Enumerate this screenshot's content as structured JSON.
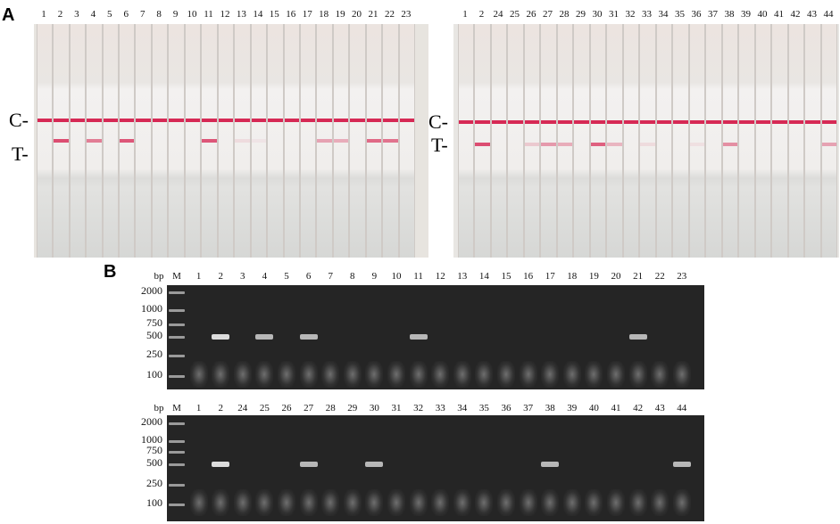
{
  "panel_labels": {
    "a": "A",
    "b": "B"
  },
  "strips": {
    "left": {
      "lanes": [
        "1",
        "2",
        "3",
        "4",
        "5",
        "6",
        "7",
        "8",
        "9",
        "10",
        "11",
        "12",
        "13",
        "14",
        "15",
        "16",
        "17",
        "18",
        "19",
        "20",
        "21",
        "22",
        "23"
      ],
      "positives": [
        "4",
        "6",
        "11",
        "18",
        "19",
        "21",
        "22"
      ],
      "t_band_strength": [
        0,
        0.85,
        0,
        0.6,
        0,
        0.8,
        0,
        0,
        0,
        0,
        0.8,
        0,
        0.1,
        0.05,
        0,
        0,
        0,
        0.4,
        0.35,
        0,
        0.7,
        0.65,
        0
      ]
    },
    "right": {
      "lanes": [
        "1",
        "2",
        "24",
        "25",
        "26",
        "27",
        "28",
        "29",
        "30",
        "31",
        "32",
        "33",
        "34",
        "35",
        "36",
        "37",
        "38",
        "39",
        "40",
        "41",
        "42",
        "43",
        "44"
      ],
      "positives": [
        "26",
        "27",
        "28",
        "30",
        "31",
        "38",
        "44"
      ],
      "t_band_strength": [
        0,
        0.85,
        0,
        0,
        0.2,
        0.45,
        0.35,
        0,
        0.75,
        0.3,
        0,
        0.1,
        0,
        0,
        0.08,
        0,
        0.5,
        0,
        0,
        0,
        0,
        0,
        0.4
      ]
    },
    "c_label": "C-",
    "t_label": "T-"
  },
  "gel": {
    "bp_label": "bp",
    "ladder": [
      "2000",
      "1000",
      "750",
      "500",
      "250",
      "100"
    ],
    "top": {
      "lanes": [
        "M",
        "1",
        "2",
        "3",
        "4",
        "5",
        "6",
        "7",
        "8",
        "9",
        "10",
        "11",
        "12",
        "13",
        "14",
        "15",
        "16",
        "17",
        "18",
        "19",
        "20",
        "21",
        "22",
        "23"
      ],
      "positives": [
        "4",
        "6",
        "11",
        "21"
      ]
    },
    "bottom": {
      "lanes": [
        "M",
        "1",
        "2",
        "24",
        "25",
        "26",
        "27",
        "28",
        "29",
        "30",
        "31",
        "32",
        "33",
        "34",
        "35",
        "36",
        "37",
        "38",
        "39",
        "40",
        "41",
        "42",
        "43",
        "44"
      ],
      "positives": [
        "27",
        "30",
        "38",
        "44"
      ]
    }
  },
  "plus_symbol": "+",
  "colors": {
    "positive_mark": "#e01020",
    "control_line": "#d41848",
    "gel_background": "#252525"
  }
}
